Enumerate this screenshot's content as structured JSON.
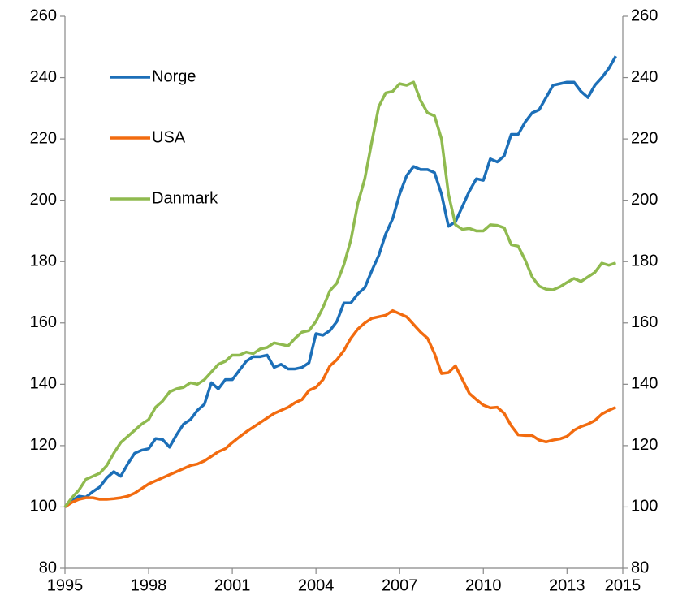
{
  "chart_data": {
    "type": "line",
    "x": [
      1995,
      1995.25,
      1995.5,
      1995.75,
      1996,
      1996.25,
      1996.5,
      1996.75,
      1997,
      1997.25,
      1997.5,
      1997.75,
      1998,
      1998.25,
      1998.5,
      1998.75,
      1999,
      1999.25,
      1999.5,
      1999.75,
      2000,
      2000.25,
      2000.5,
      2000.75,
      2001,
      2001.25,
      2001.5,
      2001.75,
      2002,
      2002.25,
      2002.5,
      2002.75,
      2003,
      2003.25,
      2003.5,
      2003.75,
      2004,
      2004.25,
      2004.5,
      2004.75,
      2005,
      2005.25,
      2005.5,
      2005.75,
      2006,
      2006.25,
      2006.5,
      2006.75,
      2007,
      2007.25,
      2007.5,
      2007.75,
      2008,
      2008.25,
      2008.5,
      2008.75,
      2009,
      2009.25,
      2009.5,
      2009.75,
      2010,
      2010.25,
      2010.5,
      2010.75,
      2011,
      2011.25,
      2011.5,
      2011.75,
      2012,
      2012.25,
      2012.5,
      2012.75,
      2013,
      2013.25,
      2013.5,
      2013.75,
      2014,
      2014.25,
      2014.5,
      2014.75
    ],
    "series": [
      {
        "name": "Norge",
        "color": "#1c6fb8",
        "values": [
          100,
          102,
          103.5,
          103.2,
          105,
          106.5,
          109.5,
          111.5,
          110,
          114,
          117.5,
          118.5,
          119,
          122.3,
          122,
          119.5,
          123.5,
          127,
          128.5,
          131.5,
          133.5,
          140.5,
          138.5,
          141.5,
          141.5,
          144.5,
          147.5,
          149,
          149,
          149.5,
          145.5,
          146.5,
          145,
          145,
          145.5,
          147,
          156.5,
          156,
          157.5,
          160.5,
          166.5,
          166.5,
          169.5,
          171.5,
          177,
          182,
          189,
          194,
          202,
          208,
          211,
          210,
          210,
          209,
          202,
          191.5,
          193,
          198,
          203,
          207,
          206.5,
          213.5,
          212.5,
          214.5,
          221.5,
          221.5,
          225.5,
          228.5,
          229.5,
          233.5,
          237.5,
          238,
          238.5,
          238.5,
          235.5,
          233.5,
          237.5,
          240,
          243,
          247
        ]
      },
      {
        "name": "USA",
        "color": "#f26b0f",
        "values": [
          100,
          101.5,
          102.5,
          103,
          103,
          102.5,
          102.5,
          102.7,
          103,
          103.5,
          104.5,
          106,
          107.5,
          108.5,
          109.5,
          110.5,
          111.5,
          112.5,
          113.5,
          114,
          115,
          116.5,
          118,
          119,
          121,
          122.8,
          124.5,
          126,
          127.5,
          129,
          130.5,
          131.5,
          132.5,
          134,
          135,
          138,
          139,
          141.5,
          146,
          148,
          151,
          155,
          158,
          160,
          161.5,
          162,
          162.5,
          164,
          163,
          162,
          159.5,
          157,
          155,
          150,
          143.5,
          143.8,
          146,
          141.5,
          137,
          135,
          133.2,
          132.3,
          132.5,
          130.5,
          126.5,
          123.5,
          123.3,
          123.3,
          121.8,
          121.2,
          121.8,
          122.2,
          123,
          125,
          126.2,
          127,
          128.2,
          130.3,
          131.5,
          132.5
        ]
      },
      {
        "name": "Danmark",
        "color": "#8fba4f",
        "values": [
          100,
          103,
          105.5,
          109,
          110,
          111,
          113.5,
          117.5,
          121,
          123,
          125,
          127,
          128.5,
          132.5,
          134.5,
          137.5,
          138.5,
          139,
          140.5,
          140,
          141.5,
          144,
          146.5,
          147.5,
          149.5,
          149.5,
          150.5,
          150,
          151.5,
          152,
          153.5,
          153,
          152.5,
          155,
          157,
          157.5,
          160.5,
          165,
          170.5,
          173,
          179,
          187,
          199,
          207,
          219,
          230.5,
          235,
          235.5,
          238,
          237.5,
          238.5,
          232.5,
          228.5,
          227.5,
          220,
          202,
          192,
          190.5,
          190.8,
          190,
          190,
          192,
          191.8,
          191,
          185.5,
          185,
          180.5,
          175,
          172,
          171,
          170.8,
          171.8,
          173.2,
          174.5,
          173.5,
          175,
          176.5,
          179.5,
          178.8,
          179.6
        ]
      }
    ],
    "xlim": [
      1995,
      2015
    ],
    "xticks": [
      1995,
      1998,
      2001,
      2004,
      2007,
      2010,
      2013,
      2015
    ],
    "ylim": [
      80,
      260
    ],
    "yticks": [
      80,
      100,
      120,
      140,
      160,
      180,
      200,
      220,
      240,
      260
    ],
    "y2lim": [
      80,
      260
    ],
    "y2ticks": [
      80,
      100,
      120,
      140,
      160,
      180,
      200,
      220,
      240,
      260
    ],
    "legend": "upper left",
    "grid": false
  }
}
